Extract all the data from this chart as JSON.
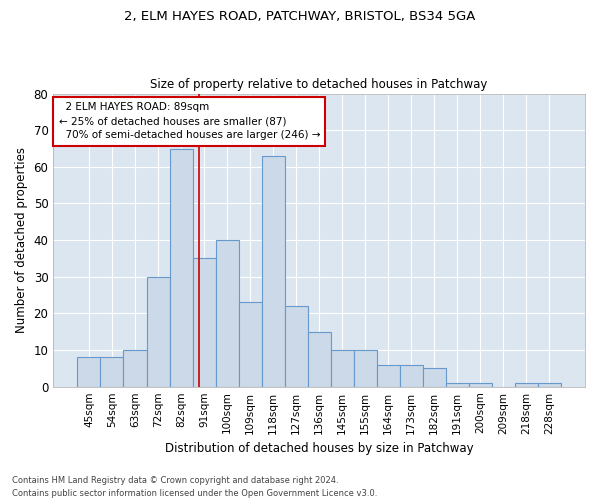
{
  "title1": "2, ELM HAYES ROAD, PATCHWAY, BRISTOL, BS34 5GA",
  "title2": "Size of property relative to detached houses in Patchway",
  "xlabel": "Distribution of detached houses by size in Patchway",
  "ylabel": "Number of detached properties",
  "bar_color": "#ccd9e8",
  "bar_edge_color": "#6699cc",
  "background_color": "#dce6f0",
  "grid_color": "#ffffff",
  "annotation_line_color": "#cc0000",
  "annotation_box_color": "#cc0000",
  "categories": [
    "45sqm",
    "54sqm",
    "63sqm",
    "72sqm",
    "82sqm",
    "91sqm",
    "100sqm",
    "109sqm",
    "118sqm",
    "127sqm",
    "136sqm",
    "145sqm",
    "155sqm",
    "164sqm",
    "173sqm",
    "182sqm",
    "191sqm",
    "200sqm",
    "209sqm",
    "218sqm",
    "228sqm"
  ],
  "values": [
    8,
    8,
    10,
    30,
    65,
    35,
    40,
    23,
    63,
    22,
    15,
    10,
    10,
    6,
    6,
    5,
    1,
    1,
    0,
    1,
    1
  ],
  "ylim": [
    0,
    80
  ],
  "yticks": [
    0,
    10,
    20,
    30,
    40,
    50,
    60,
    70,
    80
  ],
  "annotation_text": "  2 ELM HAYES ROAD: 89sqm  \n← 25% of detached houses are smaller (87)\n  70% of semi-detached houses are larger (246) →",
  "footer1": "Contains HM Land Registry data © Crown copyright and database right 2024.",
  "footer2": "Contains public sector information licensed under the Open Government Licence v3.0."
}
